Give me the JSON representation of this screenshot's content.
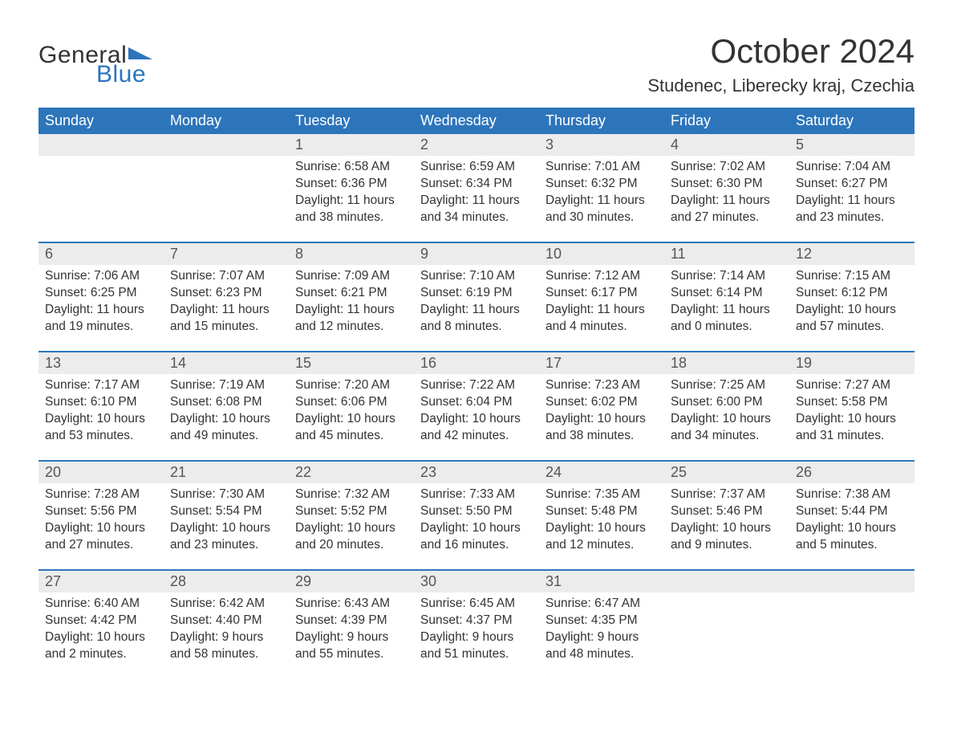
{
  "logo": {
    "text1": "General",
    "text2": "Blue",
    "accent_color": "#2d75bb"
  },
  "title": "October 2024",
  "location": "Studenec, Liberecky kraj, Czechia",
  "colors": {
    "header_bg": "#2d75bb",
    "header_text": "#ffffff",
    "daynum_bg": "#ececec",
    "body_text": "#333333",
    "week_border": "#2d75bb"
  },
  "weekdays": [
    "Sunday",
    "Monday",
    "Tuesday",
    "Wednesday",
    "Thursday",
    "Friday",
    "Saturday"
  ],
  "weeks": [
    [
      {
        "num": "",
        "sunrise": "",
        "sunset": "",
        "day1": "",
        "day2": ""
      },
      {
        "num": "",
        "sunrise": "",
        "sunset": "",
        "day1": "",
        "day2": ""
      },
      {
        "num": "1",
        "sunrise": "Sunrise: 6:58 AM",
        "sunset": "Sunset: 6:36 PM",
        "day1": "Daylight: 11 hours",
        "day2": "and 38 minutes."
      },
      {
        "num": "2",
        "sunrise": "Sunrise: 6:59 AM",
        "sunset": "Sunset: 6:34 PM",
        "day1": "Daylight: 11 hours",
        "day2": "and 34 minutes."
      },
      {
        "num": "3",
        "sunrise": "Sunrise: 7:01 AM",
        "sunset": "Sunset: 6:32 PM",
        "day1": "Daylight: 11 hours",
        "day2": "and 30 minutes."
      },
      {
        "num": "4",
        "sunrise": "Sunrise: 7:02 AM",
        "sunset": "Sunset: 6:30 PM",
        "day1": "Daylight: 11 hours",
        "day2": "and 27 minutes."
      },
      {
        "num": "5",
        "sunrise": "Sunrise: 7:04 AM",
        "sunset": "Sunset: 6:27 PM",
        "day1": "Daylight: 11 hours",
        "day2": "and 23 minutes."
      }
    ],
    [
      {
        "num": "6",
        "sunrise": "Sunrise: 7:06 AM",
        "sunset": "Sunset: 6:25 PM",
        "day1": "Daylight: 11 hours",
        "day2": "and 19 minutes."
      },
      {
        "num": "7",
        "sunrise": "Sunrise: 7:07 AM",
        "sunset": "Sunset: 6:23 PM",
        "day1": "Daylight: 11 hours",
        "day2": "and 15 minutes."
      },
      {
        "num": "8",
        "sunrise": "Sunrise: 7:09 AM",
        "sunset": "Sunset: 6:21 PM",
        "day1": "Daylight: 11 hours",
        "day2": "and 12 minutes."
      },
      {
        "num": "9",
        "sunrise": "Sunrise: 7:10 AM",
        "sunset": "Sunset: 6:19 PM",
        "day1": "Daylight: 11 hours",
        "day2": "and 8 minutes."
      },
      {
        "num": "10",
        "sunrise": "Sunrise: 7:12 AM",
        "sunset": "Sunset: 6:17 PM",
        "day1": "Daylight: 11 hours",
        "day2": "and 4 minutes."
      },
      {
        "num": "11",
        "sunrise": "Sunrise: 7:14 AM",
        "sunset": "Sunset: 6:14 PM",
        "day1": "Daylight: 11 hours",
        "day2": "and 0 minutes."
      },
      {
        "num": "12",
        "sunrise": "Sunrise: 7:15 AM",
        "sunset": "Sunset: 6:12 PM",
        "day1": "Daylight: 10 hours",
        "day2": "and 57 minutes."
      }
    ],
    [
      {
        "num": "13",
        "sunrise": "Sunrise: 7:17 AM",
        "sunset": "Sunset: 6:10 PM",
        "day1": "Daylight: 10 hours",
        "day2": "and 53 minutes."
      },
      {
        "num": "14",
        "sunrise": "Sunrise: 7:19 AM",
        "sunset": "Sunset: 6:08 PM",
        "day1": "Daylight: 10 hours",
        "day2": "and 49 minutes."
      },
      {
        "num": "15",
        "sunrise": "Sunrise: 7:20 AM",
        "sunset": "Sunset: 6:06 PM",
        "day1": "Daylight: 10 hours",
        "day2": "and 45 minutes."
      },
      {
        "num": "16",
        "sunrise": "Sunrise: 7:22 AM",
        "sunset": "Sunset: 6:04 PM",
        "day1": "Daylight: 10 hours",
        "day2": "and 42 minutes."
      },
      {
        "num": "17",
        "sunrise": "Sunrise: 7:23 AM",
        "sunset": "Sunset: 6:02 PM",
        "day1": "Daylight: 10 hours",
        "day2": "and 38 minutes."
      },
      {
        "num": "18",
        "sunrise": "Sunrise: 7:25 AM",
        "sunset": "Sunset: 6:00 PM",
        "day1": "Daylight: 10 hours",
        "day2": "and 34 minutes."
      },
      {
        "num": "19",
        "sunrise": "Sunrise: 7:27 AM",
        "sunset": "Sunset: 5:58 PM",
        "day1": "Daylight: 10 hours",
        "day2": "and 31 minutes."
      }
    ],
    [
      {
        "num": "20",
        "sunrise": "Sunrise: 7:28 AM",
        "sunset": "Sunset: 5:56 PM",
        "day1": "Daylight: 10 hours",
        "day2": "and 27 minutes."
      },
      {
        "num": "21",
        "sunrise": "Sunrise: 7:30 AM",
        "sunset": "Sunset: 5:54 PM",
        "day1": "Daylight: 10 hours",
        "day2": "and 23 minutes."
      },
      {
        "num": "22",
        "sunrise": "Sunrise: 7:32 AM",
        "sunset": "Sunset: 5:52 PM",
        "day1": "Daylight: 10 hours",
        "day2": "and 20 minutes."
      },
      {
        "num": "23",
        "sunrise": "Sunrise: 7:33 AM",
        "sunset": "Sunset: 5:50 PM",
        "day1": "Daylight: 10 hours",
        "day2": "and 16 minutes."
      },
      {
        "num": "24",
        "sunrise": "Sunrise: 7:35 AM",
        "sunset": "Sunset: 5:48 PM",
        "day1": "Daylight: 10 hours",
        "day2": "and 12 minutes."
      },
      {
        "num": "25",
        "sunrise": "Sunrise: 7:37 AM",
        "sunset": "Sunset: 5:46 PM",
        "day1": "Daylight: 10 hours",
        "day2": "and 9 minutes."
      },
      {
        "num": "26",
        "sunrise": "Sunrise: 7:38 AM",
        "sunset": "Sunset: 5:44 PM",
        "day1": "Daylight: 10 hours",
        "day2": "and 5 minutes."
      }
    ],
    [
      {
        "num": "27",
        "sunrise": "Sunrise: 6:40 AM",
        "sunset": "Sunset: 4:42 PM",
        "day1": "Daylight: 10 hours",
        "day2": "and 2 minutes."
      },
      {
        "num": "28",
        "sunrise": "Sunrise: 6:42 AM",
        "sunset": "Sunset: 4:40 PM",
        "day1": "Daylight: 9 hours",
        "day2": "and 58 minutes."
      },
      {
        "num": "29",
        "sunrise": "Sunrise: 6:43 AM",
        "sunset": "Sunset: 4:39 PM",
        "day1": "Daylight: 9 hours",
        "day2": "and 55 minutes."
      },
      {
        "num": "30",
        "sunrise": "Sunrise: 6:45 AM",
        "sunset": "Sunset: 4:37 PM",
        "day1": "Daylight: 9 hours",
        "day2": "and 51 minutes."
      },
      {
        "num": "31",
        "sunrise": "Sunrise: 6:47 AM",
        "sunset": "Sunset: 4:35 PM",
        "day1": "Daylight: 9 hours",
        "day2": "and 48 minutes."
      },
      {
        "num": "",
        "sunrise": "",
        "sunset": "",
        "day1": "",
        "day2": ""
      },
      {
        "num": "",
        "sunrise": "",
        "sunset": "",
        "day1": "",
        "day2": ""
      }
    ]
  ]
}
